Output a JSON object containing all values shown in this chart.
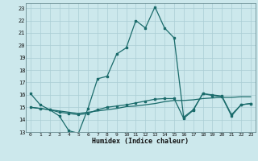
{
  "xlabel": "Humidex (Indice chaleur)",
  "xlim": [
    -0.5,
    23.5
  ],
  "ylim": [
    13,
    23.4
  ],
  "yticks": [
    13,
    14,
    15,
    16,
    17,
    18,
    19,
    20,
    21,
    22,
    23
  ],
  "xticks": [
    0,
    1,
    2,
    3,
    4,
    5,
    6,
    7,
    8,
    9,
    10,
    11,
    12,
    13,
    14,
    15,
    16,
    17,
    18,
    19,
    20,
    21,
    22,
    23
  ],
  "bg_color": "#cce8ec",
  "grid_color": "#aacdd4",
  "line_color": "#1a6b6b",
  "line1_x": [
    0,
    1,
    2,
    3,
    4,
    5,
    6,
    7,
    8,
    9,
    10,
    11,
    12,
    13,
    14,
    15,
    16,
    17,
    18,
    19,
    20,
    21,
    22,
    23
  ],
  "line1_y": [
    16.1,
    15.2,
    14.8,
    14.3,
    13.1,
    12.9,
    14.9,
    17.3,
    17.5,
    19.3,
    19.8,
    22.0,
    21.4,
    23.1,
    21.4,
    20.6,
    14.2,
    14.8,
    16.1,
    16.0,
    15.9,
    14.4,
    15.2,
    15.3
  ],
  "line2_x": [
    0,
    1,
    2,
    3,
    4,
    5,
    6,
    7,
    8,
    9,
    10,
    11,
    12,
    13,
    14,
    15,
    16,
    17,
    18,
    19,
    20,
    21,
    22,
    23
  ],
  "line2_y": [
    15.0,
    14.9,
    14.8,
    14.7,
    14.6,
    14.5,
    14.6,
    14.7,
    14.8,
    14.9,
    15.05,
    15.1,
    15.2,
    15.3,
    15.45,
    15.55,
    15.55,
    15.6,
    15.7,
    15.75,
    15.8,
    15.8,
    15.85,
    15.85
  ],
  "line3_x": [
    0,
    1,
    2,
    3,
    4,
    5,
    6,
    7,
    8,
    9,
    10,
    11,
    12,
    13,
    14,
    15,
    16,
    17,
    18,
    19,
    20,
    21,
    22,
    23
  ],
  "line3_y": [
    15.0,
    14.9,
    14.8,
    14.6,
    14.5,
    14.4,
    14.5,
    14.8,
    15.0,
    15.1,
    15.2,
    15.35,
    15.5,
    15.65,
    15.7,
    15.7,
    14.1,
    14.75,
    16.1,
    15.95,
    15.85,
    14.3,
    15.2,
    15.3
  ]
}
